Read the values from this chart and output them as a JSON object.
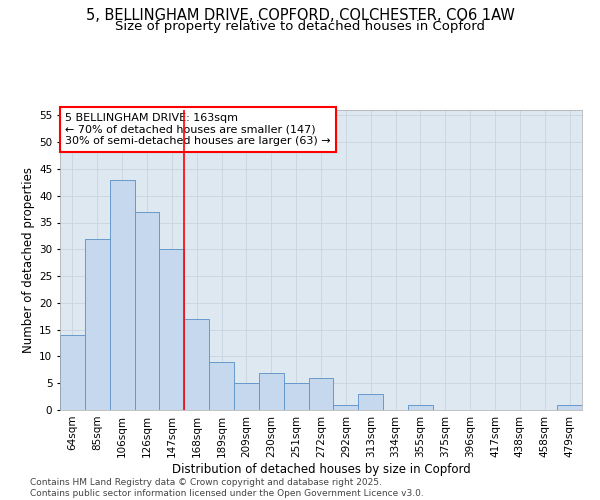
{
  "title_line1": "5, BELLINGHAM DRIVE, COPFORD, COLCHESTER, CO6 1AW",
  "title_line2": "Size of property relative to detached houses in Copford",
  "xlabel": "Distribution of detached houses by size in Copford",
  "ylabel": "Number of detached properties",
  "categories": [
    "64sqm",
    "85sqm",
    "106sqm",
    "126sqm",
    "147sqm",
    "168sqm",
    "189sqm",
    "209sqm",
    "230sqm",
    "251sqm",
    "272sqm",
    "292sqm",
    "313sqm",
    "334sqm",
    "355sqm",
    "375sqm",
    "396sqm",
    "417sqm",
    "438sqm",
    "458sqm",
    "479sqm"
  ],
  "values": [
    14,
    32,
    43,
    37,
    30,
    17,
    9,
    5,
    7,
    5,
    6,
    1,
    3,
    0,
    1,
    0,
    0,
    0,
    0,
    0,
    1
  ],
  "bar_color": "#c5d8ee",
  "bar_edge_color": "#6699cc",
  "grid_color": "#c8d4e0",
  "background_color": "#dde8f0",
  "red_line_x": 5,
  "annotation_text": "5 BELLINGHAM DRIVE: 163sqm\n← 70% of detached houses are smaller (147)\n30% of semi-detached houses are larger (63) →",
  "annotation_box_color": "white",
  "annotation_box_edge_color": "red",
  "ylim": [
    0,
    56
  ],
  "yticks": [
    0,
    5,
    10,
    15,
    20,
    25,
    30,
    35,
    40,
    45,
    50,
    55
  ],
  "footer": "Contains HM Land Registry data © Crown copyright and database right 2025.\nContains public sector information licensed under the Open Government Licence v3.0.",
  "title_fontsize": 10.5,
  "subtitle_fontsize": 9.5,
  "axis_label_fontsize": 8.5,
  "tick_fontsize": 7.5,
  "annotation_fontsize": 8,
  "footer_fontsize": 6.5
}
